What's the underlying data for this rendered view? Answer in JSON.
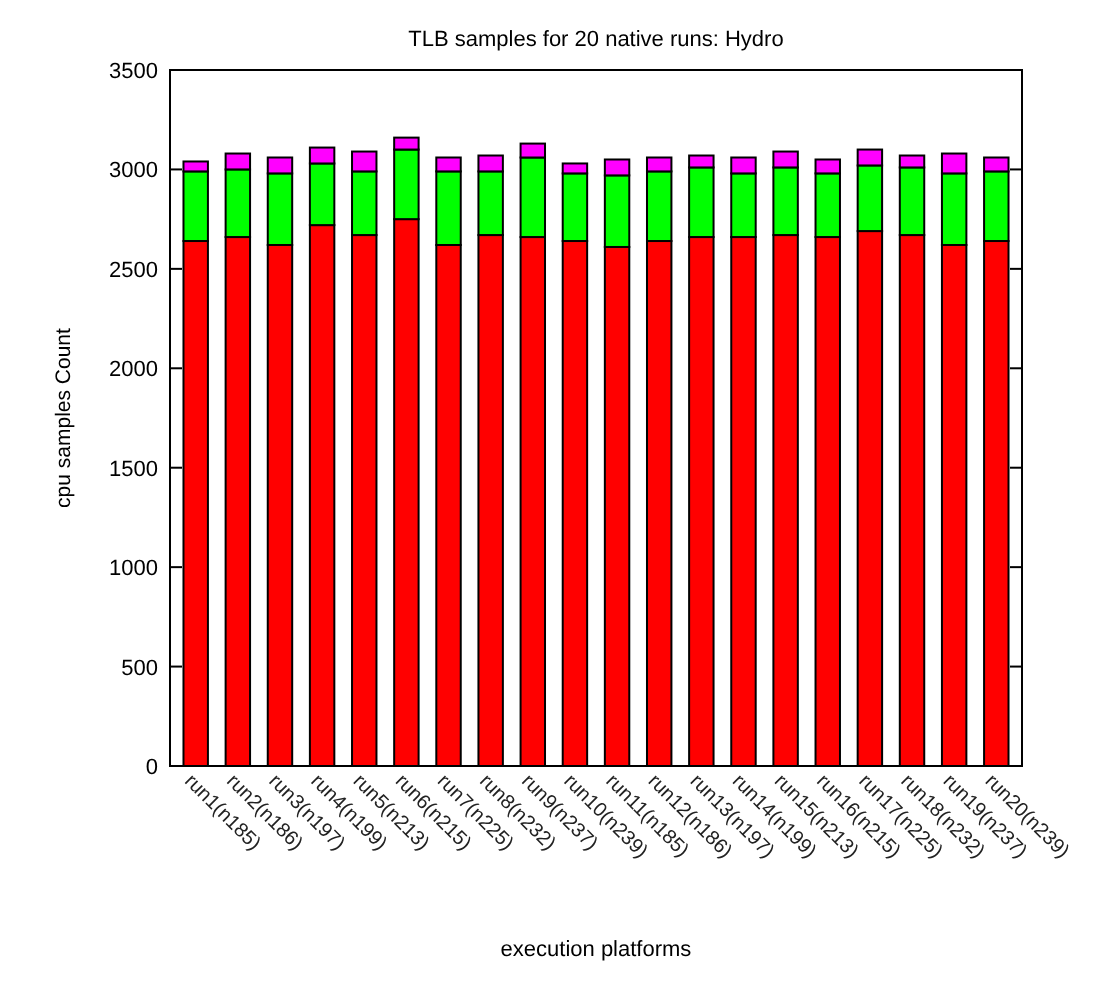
{
  "chart_data": {
    "type": "bar",
    "title": "TLB samples for 20 native runs: Hydro",
    "xlabel": "execution platforms",
    "ylabel": "cpu samples Count",
    "categories": [
      "run1(n185)",
      "run2(n186)",
      "run3(n197)",
      "run4(n199)",
      "run5(n213)",
      "run6(n215)",
      "run7(n225)",
      "run8(n232)",
      "run9(n237)",
      "run10(n239)",
      "run11(n185)",
      "run12(n186)",
      "run13(n197)",
      "run14(n199)",
      "run15(n213)",
      "run16(n215)",
      "run17(n225)",
      "run18(n232)",
      "run19(n237)",
      "run20(n239)"
    ],
    "stacked": true,
    "series": [
      {
        "color": "#ff0000",
        "values": [
          2640,
          2660,
          2620,
          2720,
          2670,
          2750,
          2620,
          2670,
          2660,
          2640,
          2610,
          2640,
          2660,
          2660,
          2670,
          2660,
          2690,
          2670,
          2620,
          2640
        ]
      },
      {
        "color": "#00ff00",
        "values": [
          350,
          340,
          360,
          310,
          320,
          350,
          370,
          320,
          400,
          340,
          360,
          350,
          350,
          320,
          340,
          320,
          330,
          340,
          360,
          350
        ]
      },
      {
        "color": "#ff00ff",
        "values": [
          50,
          80,
          80,
          80,
          100,
          60,
          70,
          80,
          70,
          50,
          80,
          70,
          60,
          80,
          80,
          70,
          80,
          60,
          100,
          70
        ]
      }
    ],
    "ylim": [
      0,
      3500
    ],
    "yticks": [
      0,
      500,
      1000,
      1500,
      2000,
      2500,
      3000,
      3500
    ],
    "grid": false
  }
}
